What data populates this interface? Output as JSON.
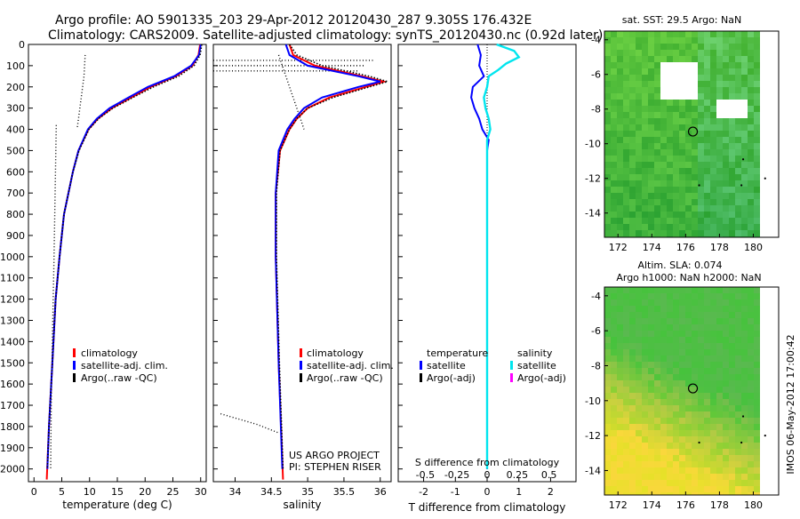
{
  "header": {
    "line1": "Argo profile: AO 5901335_203 29-Apr-2012 20120430_287 9.305S 176.432E",
    "line2": "Climatology: CARS2009. Satellite-adjusted climatology: synTS_20120430.nc (0.92d later)"
  },
  "colors": {
    "climatology": "#ff0000",
    "satellite": "#0000ff",
    "argo": "#000000",
    "sat_salinity": "#00e5ee",
    "argo_adj_salinity": "#ff00ff",
    "map_green": "#3fc44a",
    "map_yellow": "#e6e24a"
  },
  "side_label": "IMOS 06-May-2012 17:00:42",
  "chart_data": [
    {
      "id": "temperature-profile",
      "type": "line",
      "xlabel": "temperature (deg C)",
      "xlim": [
        -1,
        31
      ],
      "xticks": [
        0,
        5,
        10,
        15,
        20,
        25,
        30
      ],
      "ylim": [
        2060,
        0
      ],
      "yticks": [
        0,
        100,
        200,
        300,
        400,
        500,
        600,
        700,
        800,
        900,
        1000,
        1100,
        1200,
        1300,
        1400,
        1500,
        1600,
        1700,
        1800,
        1900,
        2000
      ],
      "legend": [
        "climatology",
        "satellite-adj. clim.",
        "Argo(..raw -QC)"
      ],
      "series": [
        {
          "name": "climatology",
          "depth": [
            0,
            50,
            100,
            150,
            200,
            250,
            300,
            350,
            400,
            500,
            600,
            800,
            1000,
            1200,
            1500,
            1800,
            2050
          ],
          "values": [
            29.9,
            29.6,
            28.5,
            25.5,
            21.0,
            17.5,
            14.0,
            11.5,
            9.8,
            8.0,
            7.0,
            5.4,
            4.6,
            3.9,
            3.3,
            2.7,
            2.3
          ]
        },
        {
          "name": "satellite-adj. clim.",
          "depth": [
            0,
            50,
            100,
            150,
            200,
            250,
            300,
            350,
            400,
            500,
            600,
            800,
            1000,
            1200,
            1500,
            1800,
            2000
          ],
          "values": [
            30.0,
            29.7,
            28.3,
            25.2,
            20.5,
            17.0,
            13.6,
            11.3,
            9.7,
            8.0,
            7.0,
            5.4,
            4.6,
            3.9,
            3.3,
            2.7,
            2.4
          ]
        },
        {
          "name": "Argo(..raw -QC)",
          "depth": [
            0,
            50,
            100,
            150,
            200,
            250,
            300,
            350,
            400,
            500,
            600,
            800,
            1000,
            1200,
            1500,
            1800,
            2000
          ],
          "values": [
            30.2,
            29.9,
            28.8,
            26.0,
            21.5,
            17.8,
            14.2,
            11.6,
            9.9,
            8.1,
            7.0,
            5.4,
            4.6,
            3.9,
            3.3,
            2.7,
            2.4
          ]
        }
      ],
      "dotted": [
        {
          "depth": [
            50,
            150,
            250,
            350,
            390
          ],
          "values": [
            9.2,
            9.0,
            8.5,
            8.0,
            7.8
          ]
        },
        {
          "depth": [
            380,
            700,
            1000,
            1400,
            1700,
            2000
          ],
          "values": [
            4.0,
            3.8,
            3.6,
            3.3,
            3.1,
            3.0
          ]
        }
      ]
    },
    {
      "id": "salinity-profile",
      "type": "line",
      "xlabel": "salinity",
      "xlim": [
        33.7,
        36.15
      ],
      "xticks": [
        34,
        34.5,
        35,
        35.5,
        36
      ],
      "ylim": [
        2060,
        0
      ],
      "legend": [
        "climatology",
        "satellite-adj. clim.",
        "Argo(..raw -QC)"
      ],
      "annotation": [
        "US ARGO PROJECT",
        "PI: STEPHEN RISER"
      ],
      "series": [
        {
          "name": "climatology",
          "depth": [
            0,
            50,
            100,
            150,
            175,
            200,
            250,
            300,
            350,
            400,
            500,
            700,
            1000,
            1500,
            2050
          ],
          "values": [
            34.75,
            34.8,
            35.1,
            35.75,
            36.05,
            35.8,
            35.3,
            35.0,
            34.85,
            34.75,
            34.62,
            34.56,
            34.56,
            34.6,
            34.66
          ]
        },
        {
          "name": "satellite-adj. clim.",
          "depth": [
            0,
            50,
            100,
            150,
            175,
            200,
            250,
            300,
            350,
            400,
            500,
            700,
            1000,
            1500,
            2000
          ],
          "values": [
            34.7,
            34.75,
            35.0,
            35.7,
            36.0,
            35.7,
            35.2,
            34.95,
            34.82,
            34.72,
            34.6,
            34.56,
            34.56,
            34.6,
            34.65
          ]
        },
        {
          "name": "Argo(..raw -QC)",
          "depth": [
            0,
            50,
            100,
            150,
            175,
            200,
            250,
            300,
            350,
            400,
            500,
            700,
            1000,
            1500,
            2000
          ],
          "values": [
            34.75,
            34.85,
            35.2,
            35.85,
            36.1,
            35.85,
            35.35,
            35.0,
            34.85,
            34.75,
            34.62,
            34.57,
            34.57,
            34.61,
            34.66
          ]
        }
      ],
      "dotted": [
        {
          "depth": [
            50,
            200,
            350,
            400
          ],
          "values": [
            34.6,
            34.75,
            34.9,
            34.95
          ]
        },
        {
          "depth": [
            1740,
            1790,
            1830
          ],
          "values": [
            33.8,
            34.3,
            34.6
          ]
        }
      ]
    },
    {
      "id": "difference-profile",
      "type": "line",
      "xlabel": "T difference from climatology",
      "xlabel_top": "S difference from climatology",
      "xlim": [
        -2.8,
        2.8
      ],
      "xticks_T": [
        -2,
        -1,
        0,
        1,
        2
      ],
      "xticks_S_labels": [
        "-0.5",
        "-0.25",
        "0",
        "0.25",
        "0.5"
      ],
      "ylim": [
        2060,
        0
      ],
      "legend_T": [
        "temperature",
        "satellite",
        "Argo(-adj)"
      ],
      "legend_S": [
        "salinity",
        "satellite",
        "Argo(-adj)"
      ],
      "series": [
        {
          "name": "temperature satellite",
          "depth": [
            0,
            50,
            100,
            150,
            200,
            250,
            300,
            350,
            400,
            450,
            500,
            800,
            1200,
            1600,
            2000
          ],
          "values": [
            -0.3,
            -0.2,
            -0.25,
            -0.1,
            -0.45,
            -0.5,
            -0.4,
            -0.25,
            -0.15,
            0.05,
            0.0,
            0.0,
            0.0,
            0.0,
            0.0
          ]
        },
        {
          "name": "salinity satellite",
          "depth": [
            0,
            30,
            60,
            90,
            120,
            150,
            200,
            250,
            300,
            350,
            400,
            450,
            500,
            800,
            1200,
            1600,
            2000
          ],
          "values": [
            0.3,
            0.85,
            1.0,
            0.6,
            0.35,
            0.05,
            0.0,
            -0.1,
            -0.05,
            0.05,
            0.1,
            0.0,
            0.0,
            0.0,
            0.0,
            0.0,
            0.0
          ]
        }
      ]
    },
    {
      "id": "sst-map",
      "type": "heatmap",
      "title": "sat. SST: 29.5 Argo: NaN",
      "xlim": [
        171.2,
        181.5
      ],
      "ylim": [
        -15.4,
        -3.5
      ],
      "xticks": [
        172,
        174,
        176,
        178,
        180
      ],
      "yticks": [
        -4,
        -6,
        -8,
        -10,
        -12,
        -14
      ],
      "argo_position": [
        176.43,
        -9.3
      ]
    },
    {
      "id": "sla-map",
      "type": "heatmap",
      "title_line1": "Altim. SLA: 0.074",
      "title_line2": "Argo h1000: NaN h2000: NaN",
      "xlim": [
        171.2,
        181.5
      ],
      "ylim": [
        -15.4,
        -3.5
      ],
      "xticks": [
        172,
        174,
        176,
        178,
        180
      ],
      "yticks": [
        -4,
        -6,
        -8,
        -10,
        -12,
        -14
      ],
      "argo_position": [
        176.43,
        -9.3
      ]
    }
  ]
}
